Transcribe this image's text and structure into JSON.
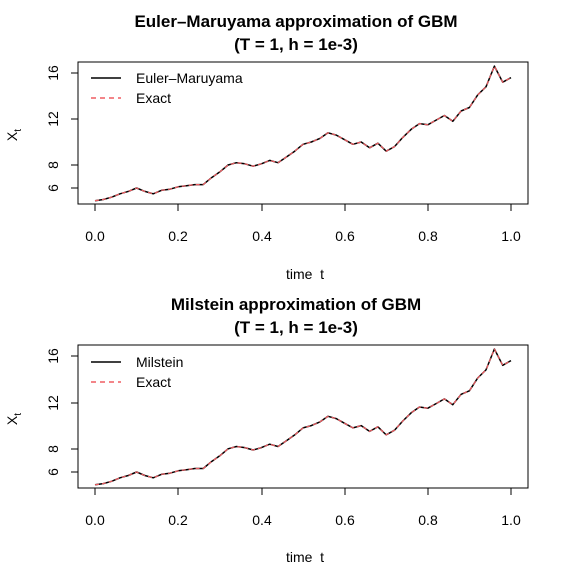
{
  "colors": {
    "em_line": "#000000",
    "exact_line": "#ef5d62",
    "frame": "#000000"
  },
  "chart_data": [
    {
      "type": "line",
      "title": "Euler–Maruyama approximation of GBM",
      "subtitle": "(T = 1, h = 1e-3)",
      "xlabel": "time  t",
      "ylabel_main": "X",
      "ylabel_sub": "t",
      "xlim": [
        0,
        1
      ],
      "ylim": [
        4.7,
        17.2
      ],
      "xticks": [
        "0.0",
        "0.2",
        "0.4",
        "0.6",
        "0.8",
        "1.0"
      ],
      "yticks": [
        "6",
        "8",
        "12",
        "16"
      ],
      "legend_position": "top-left",
      "grid": false,
      "x": [
        0.0,
        0.02,
        0.04,
        0.06,
        0.08,
        0.1,
        0.12,
        0.14,
        0.16,
        0.18,
        0.2,
        0.22,
        0.24,
        0.26,
        0.28,
        0.3,
        0.32,
        0.34,
        0.36,
        0.38,
        0.4,
        0.42,
        0.44,
        0.46,
        0.48,
        0.5,
        0.52,
        0.54,
        0.56,
        0.58,
        0.6,
        0.62,
        0.64,
        0.66,
        0.68,
        0.7,
        0.72,
        0.74,
        0.76,
        0.78,
        0.8,
        0.82,
        0.84,
        0.86,
        0.88,
        0.9,
        0.92,
        0.94,
        0.96,
        0.98,
        1.0
      ],
      "series": [
        {
          "name": "Euler–Maruyama",
          "style": "solid",
          "values": [
            4.9,
            5.0,
            5.2,
            5.5,
            5.7,
            6.0,
            5.7,
            5.5,
            5.8,
            5.9,
            6.1,
            6.2,
            6.3,
            6.3,
            6.9,
            7.4,
            8.0,
            8.2,
            8.1,
            7.9,
            8.1,
            8.4,
            8.2,
            8.7,
            9.2,
            9.8,
            10.0,
            10.3,
            10.8,
            10.6,
            10.2,
            9.8,
            10.0,
            9.5,
            9.9,
            9.2,
            9.6,
            10.4,
            11.1,
            11.6,
            11.5,
            11.9,
            12.3,
            11.8,
            12.7,
            13.0,
            14.1,
            14.8,
            16.6,
            15.2,
            15.6
          ]
        },
        {
          "name": "Exact",
          "style": "dashed",
          "values": [
            4.9,
            5.0,
            5.2,
            5.5,
            5.7,
            6.0,
            5.7,
            5.5,
            5.8,
            5.9,
            6.1,
            6.2,
            6.3,
            6.3,
            6.9,
            7.4,
            8.0,
            8.2,
            8.1,
            7.9,
            8.1,
            8.4,
            8.2,
            8.7,
            9.2,
            9.8,
            10.0,
            10.3,
            10.8,
            10.6,
            10.2,
            9.8,
            10.0,
            9.5,
            9.9,
            9.2,
            9.6,
            10.4,
            11.1,
            11.6,
            11.5,
            11.9,
            12.3,
            11.8,
            12.7,
            13.0,
            14.1,
            14.8,
            16.6,
            15.2,
            15.6
          ]
        }
      ]
    },
    {
      "type": "line",
      "title": "Milstein approximation of GBM",
      "subtitle": "(T = 1, h = 1e-3)",
      "xlabel": "time  t",
      "ylabel_main": "X",
      "ylabel_sub": "t",
      "xlim": [
        0,
        1
      ],
      "ylim": [
        4.7,
        17.2
      ],
      "xticks": [
        "0.0",
        "0.2",
        "0.4",
        "0.6",
        "0.8",
        "1.0"
      ],
      "yticks": [
        "6",
        "8",
        "12",
        "16"
      ],
      "legend_position": "top-left",
      "grid": false,
      "x": [
        0.0,
        0.02,
        0.04,
        0.06,
        0.08,
        0.1,
        0.12,
        0.14,
        0.16,
        0.18,
        0.2,
        0.22,
        0.24,
        0.26,
        0.28,
        0.3,
        0.32,
        0.34,
        0.36,
        0.38,
        0.4,
        0.42,
        0.44,
        0.46,
        0.48,
        0.5,
        0.52,
        0.54,
        0.56,
        0.58,
        0.6,
        0.62,
        0.64,
        0.66,
        0.68,
        0.7,
        0.72,
        0.74,
        0.76,
        0.78,
        0.8,
        0.82,
        0.84,
        0.86,
        0.88,
        0.9,
        0.92,
        0.94,
        0.96,
        0.98,
        1.0
      ],
      "series": [
        {
          "name": "Milstein",
          "style": "solid",
          "values": [
            4.9,
            5.0,
            5.2,
            5.5,
            5.7,
            6.0,
            5.7,
            5.5,
            5.8,
            5.9,
            6.1,
            6.2,
            6.3,
            6.3,
            6.9,
            7.4,
            8.0,
            8.2,
            8.1,
            7.9,
            8.1,
            8.4,
            8.2,
            8.7,
            9.2,
            9.8,
            10.0,
            10.3,
            10.8,
            10.6,
            10.2,
            9.8,
            10.0,
            9.5,
            9.9,
            9.2,
            9.6,
            10.4,
            11.1,
            11.6,
            11.5,
            11.9,
            12.3,
            11.8,
            12.7,
            13.0,
            14.1,
            14.8,
            16.6,
            15.2,
            15.6
          ]
        },
        {
          "name": "Exact",
          "style": "dashed",
          "values": [
            4.9,
            5.0,
            5.2,
            5.5,
            5.7,
            6.0,
            5.7,
            5.5,
            5.8,
            5.9,
            6.1,
            6.2,
            6.3,
            6.3,
            6.9,
            7.4,
            8.0,
            8.2,
            8.1,
            7.9,
            8.1,
            8.4,
            8.2,
            8.7,
            9.2,
            9.8,
            10.0,
            10.3,
            10.8,
            10.6,
            10.2,
            9.8,
            10.0,
            9.5,
            9.9,
            9.2,
            9.6,
            10.4,
            11.1,
            11.6,
            11.5,
            11.9,
            12.3,
            11.8,
            12.7,
            13.0,
            14.1,
            14.8,
            16.6,
            15.2,
            15.6
          ]
        }
      ]
    }
  ]
}
